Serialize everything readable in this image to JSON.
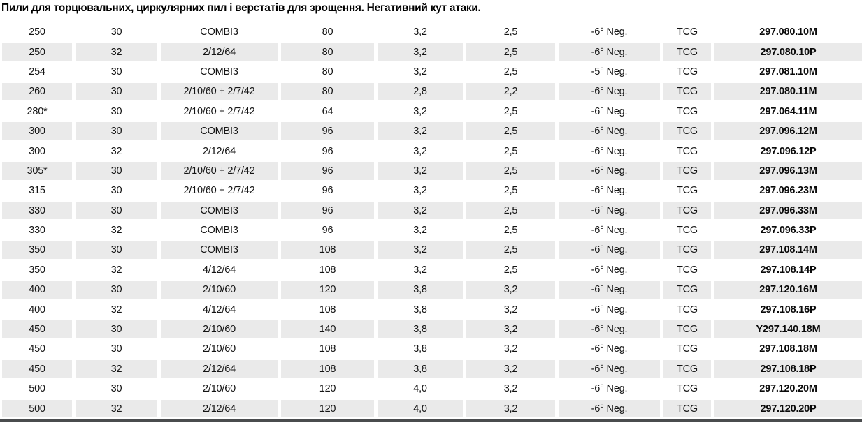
{
  "title": "Пили для торцювальних, циркулярних пил і верстатів для зрощення. Негативний кут атаки.",
  "colors": {
    "row_shade": "#eaeaea",
    "bottom_rule": "#4a4c4e"
  },
  "table": {
    "rows": [
      [
        "250",
        "30",
        "COMBI3",
        "80",
        "3,2",
        "2,5",
        "-6° Neg.",
        "TCG",
        "297.080.10M"
      ],
      [
        "250",
        "32",
        "2/12/64",
        "80",
        "3,2",
        "2,5",
        "-6° Neg.",
        "TCG",
        "297.080.10P"
      ],
      [
        "254",
        "30",
        "COMBI3",
        "80",
        "3,2",
        "2,5",
        "-5° Neg.",
        "TCG",
        "297.081.10M"
      ],
      [
        "260",
        "30",
        "2/10/60 + 2/7/42",
        "80",
        "2,8",
        "2,2",
        "-6° Neg.",
        "TCG",
        "297.080.11M"
      ],
      [
        "280*",
        "30",
        "2/10/60 + 2/7/42",
        "64",
        "3,2",
        "2,5",
        "-6° Neg.",
        "TCG",
        "297.064.11M"
      ],
      [
        "300",
        "30",
        "COMBI3",
        "96",
        "3,2",
        "2,5",
        "-6° Neg.",
        "TCG",
        "297.096.12M"
      ],
      [
        "300",
        "32",
        "2/12/64",
        "96",
        "3,2",
        "2,5",
        "-6° Neg.",
        "TCG",
        "297.096.12P"
      ],
      [
        "305*",
        "30",
        "2/10/60 + 2/7/42",
        "96",
        "3,2",
        "2,5",
        "-6° Neg.",
        "TCG",
        "297.096.13M"
      ],
      [
        "315",
        "30",
        "2/10/60 + 2/7/42",
        "96",
        "3,2",
        "2,5",
        "-6° Neg.",
        "TCG",
        "297.096.23M"
      ],
      [
        "330",
        "30",
        "COMBI3",
        "96",
        "3,2",
        "2,5",
        "-6° Neg.",
        "TCG",
        "297.096.33M"
      ],
      [
        "330",
        "32",
        "COMBI3",
        "96",
        "3,2",
        "2,5",
        "-6° Neg.",
        "TCG",
        "297.096.33P"
      ],
      [
        "350",
        "30",
        "COMBI3",
        "108",
        "3,2",
        "2,5",
        "-6° Neg.",
        "TCG",
        "297.108.14M"
      ],
      [
        "350",
        "32",
        "4/12/64",
        "108",
        "3,2",
        "2,5",
        "-6° Neg.",
        "TCG",
        "297.108.14P"
      ],
      [
        "400",
        "30",
        "2/10/60",
        "120",
        "3,8",
        "3,2",
        "-6° Neg.",
        "TCG",
        "297.120.16M"
      ],
      [
        "400",
        "32",
        "4/12/64",
        "108",
        "3,8",
        "3,2",
        "-6° Neg.",
        "TCG",
        "297.108.16P"
      ],
      [
        "450",
        "30",
        "2/10/60",
        "140",
        "3,8",
        "3,2",
        "-6° Neg.",
        "TCG",
        "Y297.140.18M"
      ],
      [
        "450",
        "30",
        "2/10/60",
        "108",
        "3,8",
        "3,2",
        "-6° Neg.",
        "TCG",
        "297.108.18M"
      ],
      [
        "450",
        "32",
        "2/12/64",
        "108",
        "3,8",
        "3,2",
        "-6° Neg.",
        "TCG",
        "297.108.18P"
      ],
      [
        "500",
        "30",
        "2/10/60",
        "120",
        "4,0",
        "3,2",
        "-6° Neg.",
        "TCG",
        "297.120.20M"
      ],
      [
        "500",
        "32",
        "2/12/64",
        "120",
        "4,0",
        "3,2",
        "-6° Neg.",
        "TCG",
        "297.120.20P"
      ]
    ]
  }
}
